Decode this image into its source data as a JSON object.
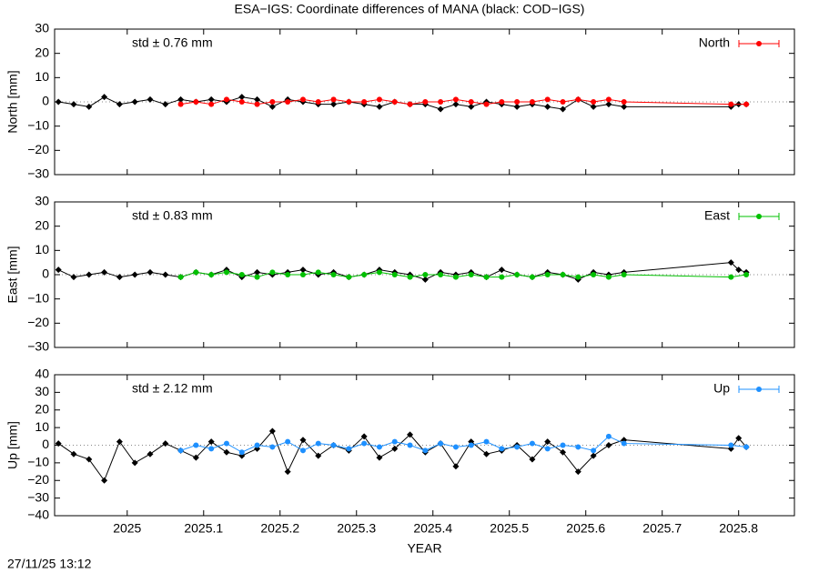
{
  "title": "ESA−IGS: Coordinate differences of MANA (black: COD−IGS)",
  "timestamp": "27/11/25 13:12",
  "chart_data": [
    {
      "type": "line",
      "ylabel": "North [mm]",
      "annotation": "std ± 0.76 mm",
      "annotation_color": "#ff0000",
      "xlim": [
        2024.905,
        2025.873
      ],
      "xticks": [
        2025,
        2025.1,
        2025.2,
        2025.3,
        2025.4,
        2025.5,
        2025.6,
        2025.7,
        2025.8
      ],
      "ylim": [
        -30,
        30
      ],
      "yticks": [
        {
          "value": -30,
          "label": "−30"
        },
        {
          "value": -20,
          "label": "−20"
        },
        {
          "value": -10,
          "label": "−10"
        },
        0,
        10,
        20,
        30
      ],
      "legend": "top-right",
      "series": [
        {
          "color": "#000000",
          "marker": "diamond",
          "x": [
            2024.91,
            2024.93,
            2024.95,
            2024.97,
            2024.99,
            2025.01,
            2025.03,
            2025.05,
            2025.07,
            2025.09,
            2025.11,
            2025.13,
            2025.15,
            2025.17,
            2025.19,
            2025.21,
            2025.23,
            2025.25,
            2025.27,
            2025.29,
            2025.31,
            2025.33,
            2025.35,
            2025.37,
            2025.39,
            2025.41,
            2025.43,
            2025.45,
            2025.47,
            2025.49,
            2025.51,
            2025.53,
            2025.55,
            2025.57,
            2025.59,
            2025.61,
            2025.63,
            2025.65,
            2025.79,
            2025.8,
            2025.81
          ],
          "values": [
            0,
            -1,
            -2,
            2,
            -1,
            0,
            1,
            -1,
            1,
            0,
            1,
            0,
            2,
            1,
            -2,
            1,
            0,
            -1,
            -1,
            0,
            -1,
            -2,
            0,
            -1,
            -1,
            -3,
            -1,
            -2,
            0,
            -1,
            -2,
            -1,
            -2,
            -3,
            1,
            -2,
            -1,
            -2,
            -2,
            -1,
            -1
          ]
        },
        {
          "name": "North",
          "color": "#ff0000",
          "marker": "circle",
          "x": [
            2025.07,
            2025.09,
            2025.11,
            2025.13,
            2025.15,
            2025.17,
            2025.19,
            2025.21,
            2025.23,
            2025.25,
            2025.27,
            2025.29,
            2025.31,
            2025.33,
            2025.35,
            2025.37,
            2025.39,
            2025.41,
            2025.43,
            2025.45,
            2025.47,
            2025.49,
            2025.51,
            2025.53,
            2025.55,
            2025.57,
            2025.59,
            2025.61,
            2025.63,
            2025.65,
            2025.79,
            2025.81
          ],
          "values": [
            -1,
            0,
            -1,
            1,
            0,
            -1,
            0,
            0,
            1,
            0,
            1,
            0,
            0,
            1,
            0,
            -1,
            0,
            0,
            1,
            0,
            -1,
            0,
            0,
            0,
            1,
            0,
            1,
            0,
            1,
            0,
            -1,
            -1
          ]
        }
      ]
    },
    {
      "type": "line",
      "ylabel": "East [mm]",
      "annotation": "std ± 0.83 mm",
      "annotation_color": "#00c000",
      "xlim": [
        2024.905,
        2025.873
      ],
      "xticks": [
        2025,
        2025.1,
        2025.2,
        2025.3,
        2025.4,
        2025.5,
        2025.6,
        2025.7,
        2025.8
      ],
      "ylim": [
        -30,
        30
      ],
      "yticks": [
        {
          "value": -30,
          "label": "−30"
        },
        {
          "value": -20,
          "label": "−20"
        },
        {
          "value": -10,
          "label": "−10"
        },
        0,
        10,
        20,
        30
      ],
      "legend": "top-right",
      "series": [
        {
          "color": "#000000",
          "marker": "diamond",
          "x": [
            2024.91,
            2024.93,
            2024.95,
            2024.97,
            2024.99,
            2025.01,
            2025.03,
            2025.05,
            2025.07,
            2025.09,
            2025.11,
            2025.13,
            2025.15,
            2025.17,
            2025.19,
            2025.21,
            2025.23,
            2025.25,
            2025.27,
            2025.29,
            2025.31,
            2025.33,
            2025.35,
            2025.37,
            2025.39,
            2025.41,
            2025.43,
            2025.45,
            2025.47,
            2025.49,
            2025.51,
            2025.53,
            2025.55,
            2025.57,
            2025.59,
            2025.61,
            2025.63,
            2025.65,
            2025.79,
            2025.8,
            2025.81
          ],
          "values": [
            2,
            -1,
            0,
            1,
            -1,
            0,
            1,
            0,
            -1,
            1,
            0,
            2,
            -1,
            1,
            0,
            1,
            2,
            0,
            1,
            -1,
            0,
            2,
            1,
            0,
            -2,
            1,
            0,
            1,
            -1,
            2,
            0,
            -1,
            1,
            0,
            -2,
            1,
            0,
            1,
            5,
            2,
            1
          ]
        },
        {
          "name": "East",
          "color": "#00c000",
          "marker": "circle",
          "x": [
            2025.07,
            2025.09,
            2025.11,
            2025.13,
            2025.15,
            2025.17,
            2025.19,
            2025.21,
            2025.23,
            2025.25,
            2025.27,
            2025.29,
            2025.31,
            2025.33,
            2025.35,
            2025.37,
            2025.39,
            2025.41,
            2025.43,
            2025.45,
            2025.47,
            2025.49,
            2025.51,
            2025.53,
            2025.55,
            2025.57,
            2025.59,
            2025.61,
            2025.63,
            2025.65,
            2025.79,
            2025.81
          ],
          "values": [
            -1,
            1,
            0,
            1,
            0,
            -1,
            1,
            0,
            0,
            1,
            0,
            -1,
            0,
            1,
            0,
            -1,
            0,
            0,
            -1,
            0,
            -1,
            -1,
            0,
            -1,
            0,
            0,
            -1,
            0,
            -1,
            0,
            -1,
            0
          ]
        }
      ]
    },
    {
      "type": "line",
      "ylabel": "Up [mm]",
      "xlabel": "YEAR",
      "annotation": "std ± 2.12 mm",
      "annotation_color": "#1e90ff",
      "xlim": [
        2024.905,
        2025.873
      ],
      "xticks": [
        2025,
        2025.1,
        2025.2,
        2025.3,
        2025.4,
        2025.5,
        2025.6,
        2025.7,
        2025.8
      ],
      "ylim": [
        -40,
        40
      ],
      "yticks": [
        {
          "value": -40,
          "label": "−40"
        },
        {
          "value": -30,
          "label": "−30"
        },
        {
          "value": -20,
          "label": "−20"
        },
        {
          "value": -10,
          "label": "−10"
        },
        0,
        10,
        20,
        30,
        40
      ],
      "legend": "top-right",
      "series": [
        {
          "color": "#000000",
          "marker": "diamond",
          "x": [
            2024.91,
            2024.93,
            2024.95,
            2024.97,
            2024.99,
            2025.01,
            2025.03,
            2025.05,
            2025.07,
            2025.09,
            2025.11,
            2025.13,
            2025.15,
            2025.17,
            2025.19,
            2025.21,
            2025.23,
            2025.25,
            2025.27,
            2025.29,
            2025.31,
            2025.33,
            2025.35,
            2025.37,
            2025.39,
            2025.41,
            2025.43,
            2025.45,
            2025.47,
            2025.49,
            2025.51,
            2025.53,
            2025.55,
            2025.57,
            2025.59,
            2025.61,
            2025.63,
            2025.65,
            2025.79,
            2025.8,
            2025.81
          ],
          "values": [
            1,
            -5,
            -8,
            -20,
            2,
            -10,
            -5,
            1,
            -3,
            -7,
            2,
            -4,
            -6,
            -2,
            8,
            -15,
            3,
            -6,
            0,
            -3,
            5,
            -7,
            -2,
            6,
            -4,
            1,
            -12,
            2,
            -5,
            -3,
            0,
            -8,
            2,
            -4,
            -15,
            -6,
            0,
            3,
            -2,
            4,
            -1
          ]
        },
        {
          "name": "Up",
          "color": "#1e90ff",
          "marker": "circle",
          "x": [
            2025.07,
            2025.09,
            2025.11,
            2025.13,
            2025.15,
            2025.17,
            2025.19,
            2025.21,
            2025.23,
            2025.25,
            2025.27,
            2025.29,
            2025.31,
            2025.33,
            2025.35,
            2025.37,
            2025.39,
            2025.41,
            2025.43,
            2025.45,
            2025.47,
            2025.49,
            2025.51,
            2025.53,
            2025.55,
            2025.57,
            2025.59,
            2025.61,
            2025.63,
            2025.65,
            2025.79,
            2025.81
          ],
          "values": [
            -3,
            0,
            -2,
            1,
            -4,
            0,
            -1,
            2,
            -3,
            1,
            0,
            -2,
            1,
            -1,
            2,
            0,
            -3,
            1,
            -1,
            0,
            2,
            -2,
            -1,
            1,
            -2,
            0,
            -1,
            -3,
            5,
            1,
            0,
            -1
          ]
        }
      ]
    }
  ]
}
